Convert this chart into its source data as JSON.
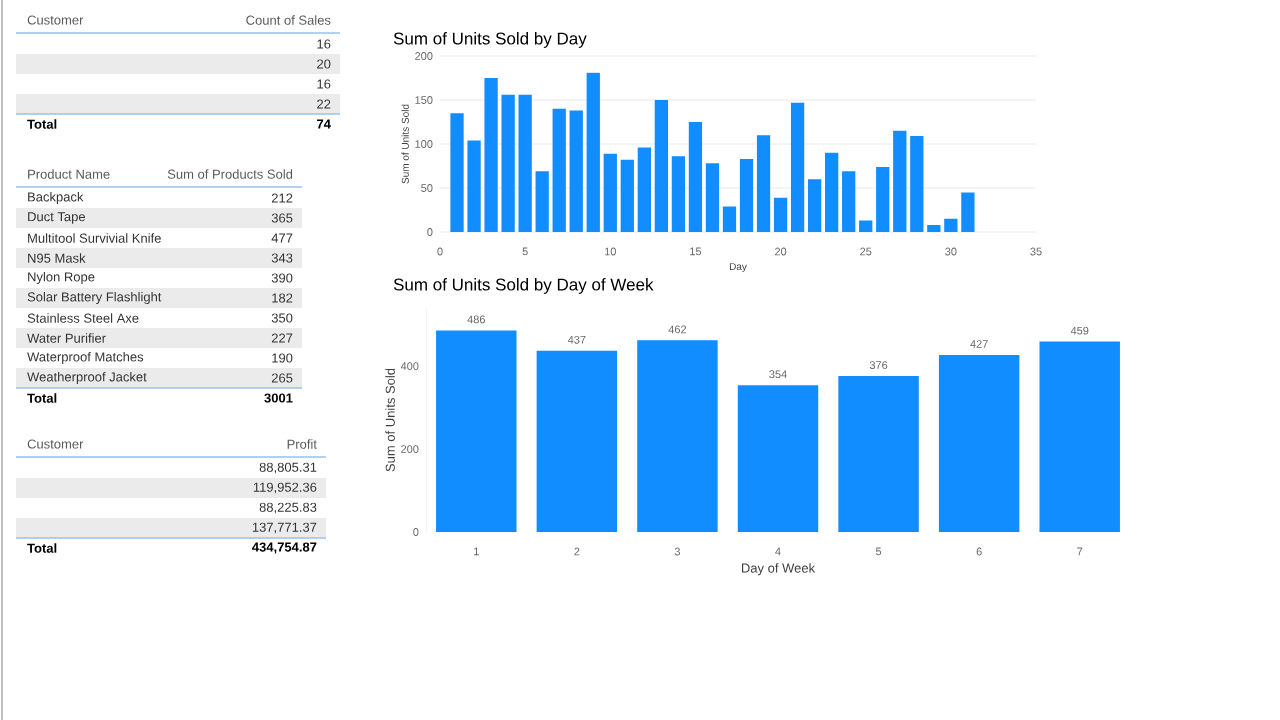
{
  "chart_data": [
    {
      "type": "other",
      "xlabel": "Customer",
      "ylabel": "Count of Sales",
      "categories": [
        null,
        null,
        null,
        null
      ],
      "values": [
        16,
        20,
        16,
        22
      ],
      "data_labels": true,
      "annotations": [
        "Total",
        "74"
      ]
    },
    {
      "type": "other",
      "xlabel": "Product Name",
      "ylabel": "Sum of Products Sold",
      "categories": [
        "Backpack",
        "Duct Tape",
        "Multitool Survivial Knife",
        "N95 Mask",
        "Nylon Rope",
        "Solar Battery Flashlight",
        "Stainless Steel Axe",
        "Water Purifier",
        "Waterproof Matches",
        "Weatherproof Jacket"
      ],
      "values": [
        212,
        365,
        477,
        343,
        390,
        182,
        350,
        227,
        190,
        265
      ],
      "data_labels": true,
      "annotations": [
        "Total",
        "3001"
      ]
    },
    {
      "type": "other",
      "xlabel": "Customer",
      "ylabel": "Profit",
      "categories": [
        null,
        null,
        null,
        null
      ],
      "values": [
        88805.31,
        119952.36,
        88225.83,
        137771.37
      ],
      "value_labels": [
        "88,805.31",
        "119,952.36",
        "88,225.83",
        "137,771.37"
      ],
      "annotations": [
        "Total",
        "434,754.87"
      ]
    },
    {
      "type": "bar",
      "title": "Sum of Units Sold by Day",
      "xlabel": "Day",
      "ylabel": "Sum of Units Sold",
      "color": "#118dff",
      "grid": "y",
      "x": [
        1,
        2,
        3,
        4,
        5,
        6,
        7,
        8,
        9,
        10,
        11,
        12,
        13,
        14,
        15,
        16,
        17,
        18,
        19,
        20,
        21,
        22,
        23,
        24,
        25,
        26,
        27,
        28,
        29,
        30,
        31
      ],
      "values": [
        135,
        104,
        175,
        156,
        156,
        69,
        140,
        138,
        181,
        89,
        82,
        96,
        150,
        86,
        125,
        78,
        29,
        83,
        110,
        39,
        147,
        60,
        90,
        69,
        13,
        74,
        115,
        109,
        8,
        15,
        45
      ],
      "xlim": [
        0,
        35
      ],
      "xticks": [
        0,
        5,
        10,
        15,
        20,
        25,
        30,
        35
      ],
      "ylim": [
        0,
        200
      ],
      "yticks": [
        0,
        50,
        100,
        150,
        200
      ]
    },
    {
      "type": "bar",
      "title": "Sum of Units Sold by Day of Week",
      "xlabel": "Day of Week",
      "ylabel": "Sum of Units Sold",
      "color": "#118dff",
      "categories": [
        "1",
        "2",
        "3",
        "4",
        "5",
        "6",
        "7"
      ],
      "values": [
        486,
        437,
        462,
        354,
        376,
        427,
        459
      ],
      "data_labels": true,
      "ylim": [
        0,
        540
      ],
      "yticks": [
        0,
        200,
        400
      ]
    }
  ]
}
